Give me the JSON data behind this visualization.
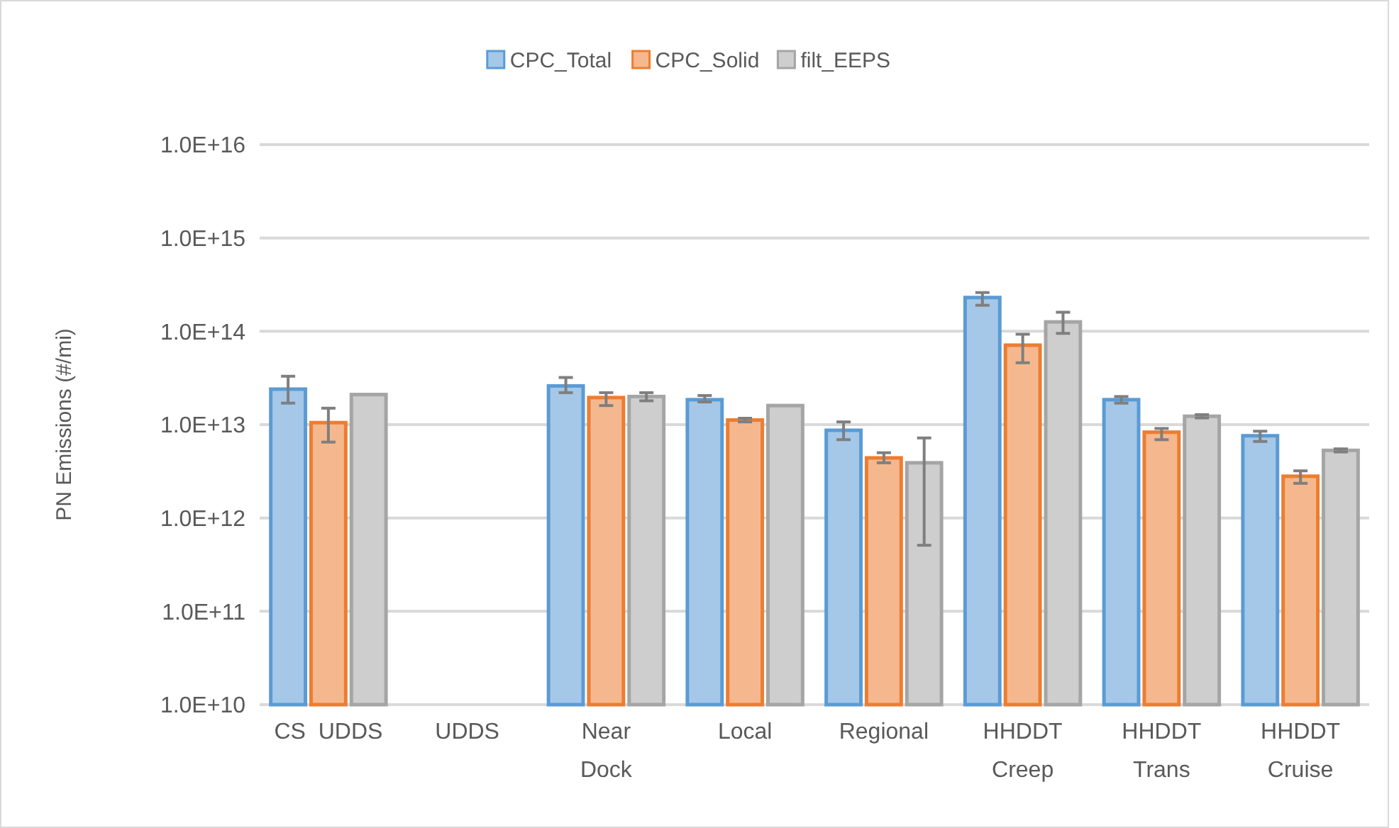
{
  "chart_data": {
    "type": "bar",
    "ylabel": "PN Emissions (#/mi)",
    "log": true,
    "grid": "y",
    "legend": "top",
    "categories": [
      "CS  UDDS",
      "UDDS",
      "Near\nDock",
      "Local",
      "Regional",
      "HHDDT\nCreep",
      "HHDDT\nTrans",
      "HHDDT\nCruise"
    ],
    "ylim": [
      10000000000.0,
      1e+16
    ],
    "yticks": [
      {
        "value": 10000000000.0,
        "label": "1.0E+10"
      },
      {
        "value": 100000000000.0,
        "label": "1.0E+11"
      },
      {
        "value": 1000000000000.0,
        "label": "1.0E+12"
      },
      {
        "value": 10000000000000.0,
        "label": "1.0E+13"
      },
      {
        "value": 100000000000000.0,
        "label": "1.0E+14"
      },
      {
        "value": 1000000000000000.0,
        "label": "1.0E+15"
      },
      {
        "value": 1e+16,
        "label": "1.0E+16"
      }
    ],
    "series": [
      {
        "name": "CPC_Total",
        "color": "#5b9bd5",
        "values": [
          24000000000000.0,
          null,
          26000000000000.0,
          18500000000000.0,
          8700000000000.0,
          230000000000000.0,
          18500000000000.0,
          7600000000000.0
        ],
        "errors": [
          [
            17000000000000.0,
            33000000000000.0
          ],
          null,
          [
            22000000000000.0,
            32000000000000.0
          ],
          [
            17500000000000.0,
            20500000000000.0
          ],
          [
            6900000000000.0,
            10700000000000.0
          ],
          [
            190000000000000.0,
            260000000000000.0
          ],
          [
            17000000000000.0,
            20000000000000.0
          ],
          [
            6600000000000.0,
            8500000000000.0
          ]
        ]
      },
      {
        "name": "CPC_Solid",
        "color": "#ed7d31",
        "values": [
          10500000000000.0,
          null,
          19500000000000.0,
          11200000000000.0,
          4400000000000.0,
          71000000000000.0,
          8300000000000.0,
          2800000000000.0
        ],
        "errors": [
          [
            6500000000000.0,
            15000000000000.0
          ],
          null,
          [
            16000000000000.0,
            22000000000000.0
          ],
          [
            10700000000000.0,
            11700000000000.0
          ],
          [
            3900000000000.0,
            5000000000000.0
          ],
          [
            46000000000000.0,
            93000000000000.0
          ],
          [
            6900000000000.0,
            9100000000000.0
          ],
          [
            2350000000000.0,
            3200000000000.0
          ]
        ]
      },
      {
        "name": "filt_EEPS",
        "color": "#a5a5a5",
        "values": [
          21000000000000.0,
          null,
          20000000000000.0,
          16000000000000.0,
          3900000000000.0,
          126000000000000.0,
          12300000000000.0,
          5300000000000.0
        ],
        "errors": [
          null,
          null,
          [
            18000000000000.0,
            22000000000000.0
          ],
          null,
          [
            510000000000.0,
            7200000000000.0
          ],
          [
            95000000000000.0,
            160000000000000.0
          ],
          [
            11800000000000.0,
            12800000000000.0
          ],
          [
            5100000000000.0,
            5500000000000.0
          ]
        ]
      }
    ]
  }
}
